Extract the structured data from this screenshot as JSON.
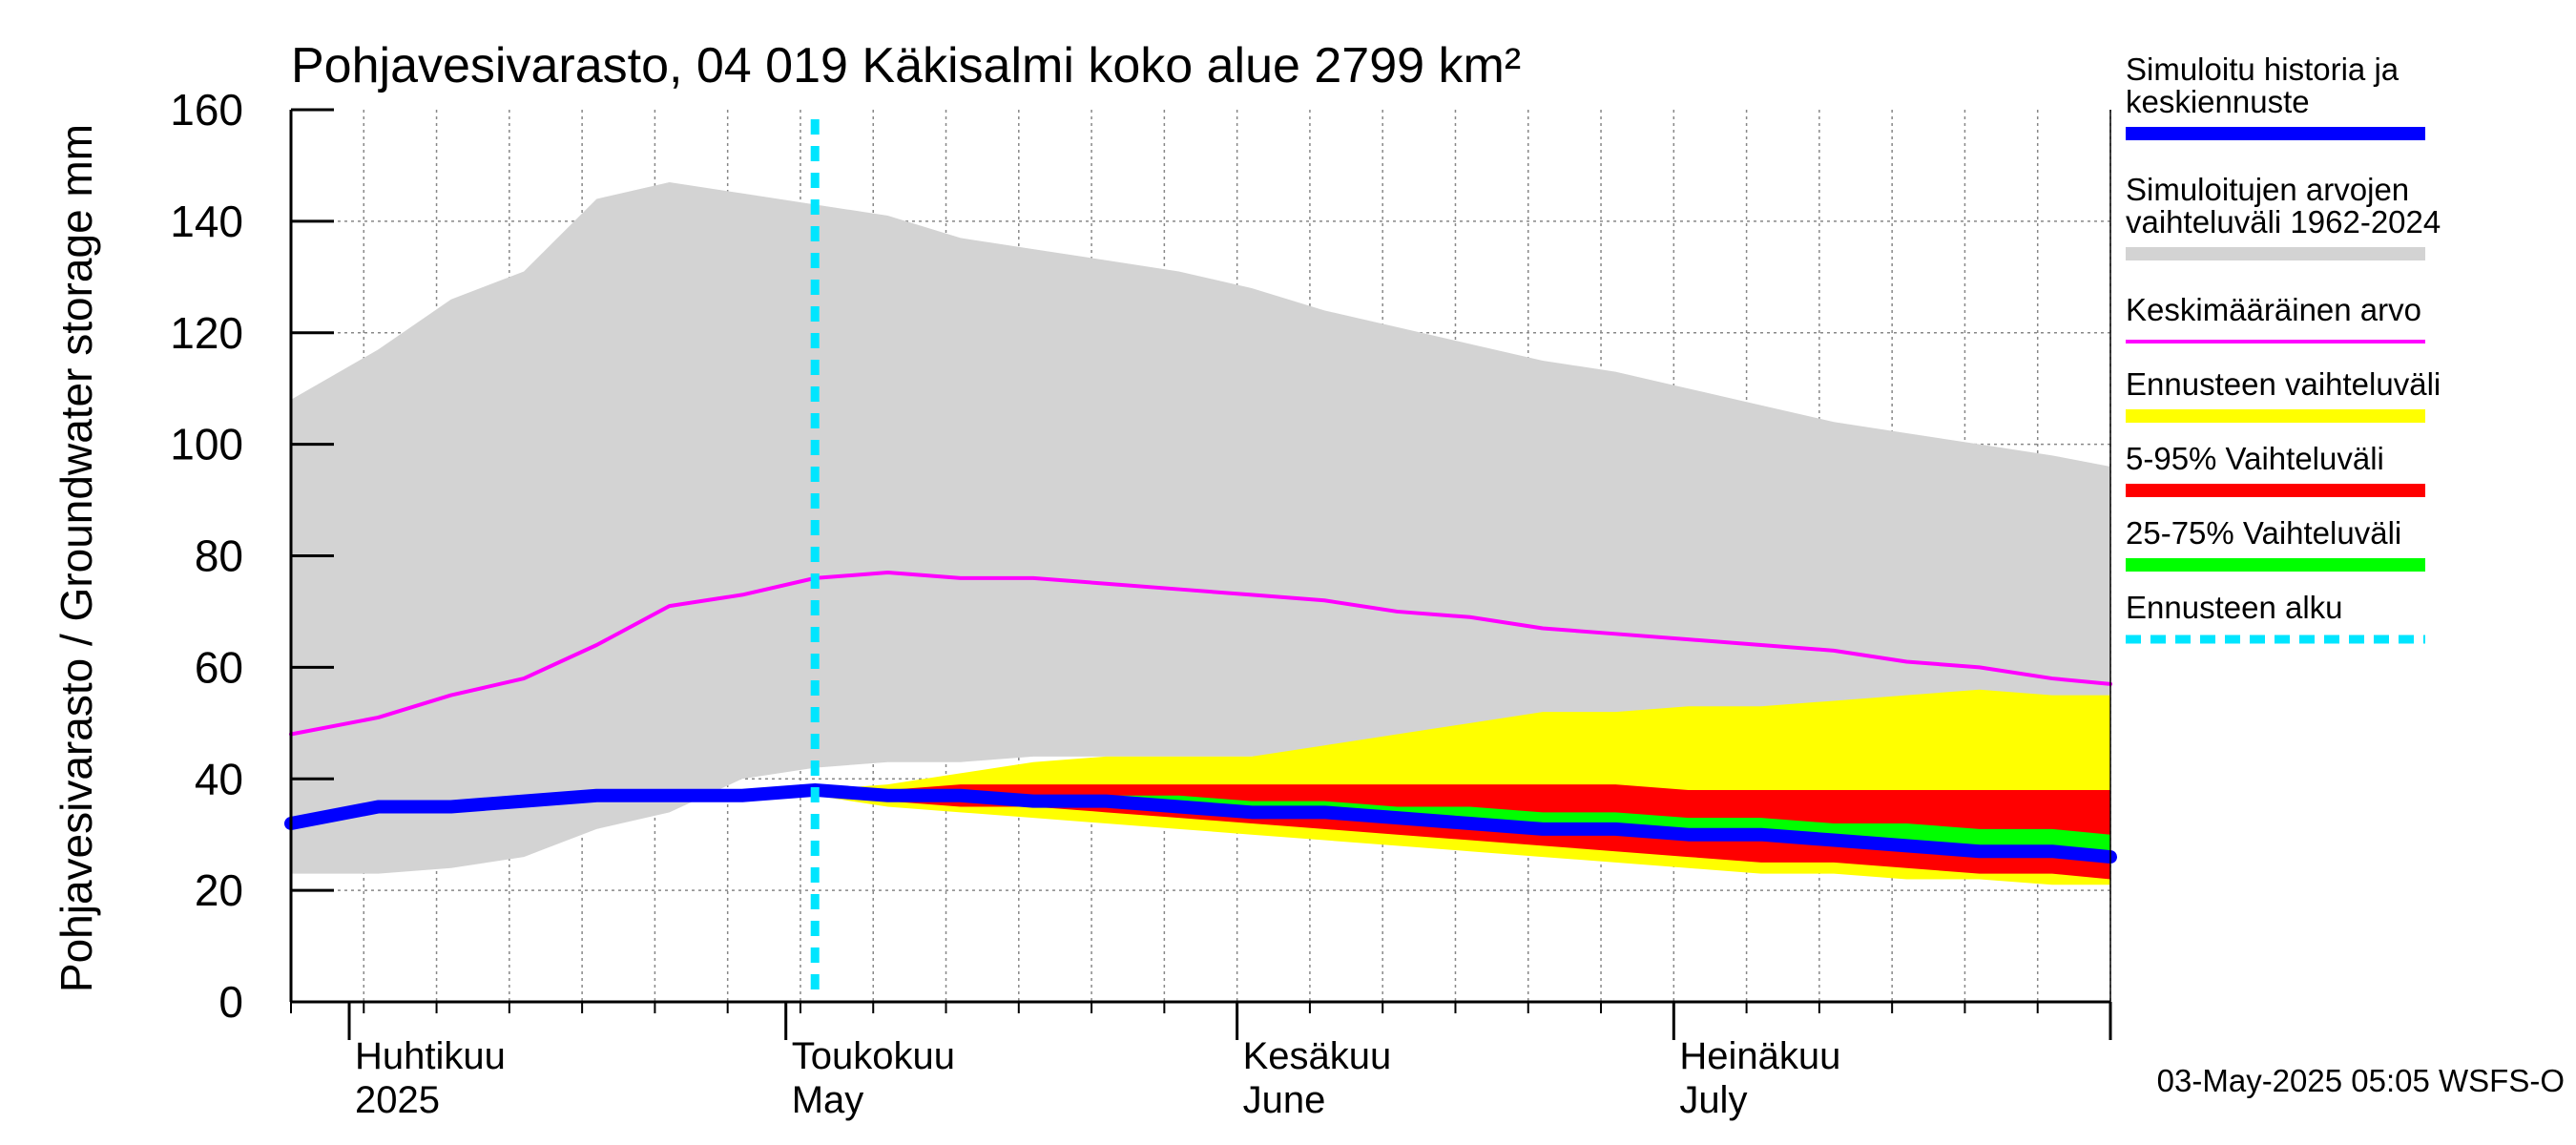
{
  "chart_data": {
    "type": "area",
    "title": "Pohjavesivarasto, 04 019 Käkisalmi koko alue 2799 km²",
    "ylabel": "Pohjavesivarasto / Groundwater storage   mm",
    "ylim": [
      0,
      160
    ],
    "y_ticks": [
      "0",
      "20",
      "40",
      "60",
      "80",
      "100",
      "120",
      "140",
      "160"
    ],
    "xlim": [
      "2025-03-28",
      "2025-07-31"
    ],
    "grid": true,
    "months": [
      {
        "date": "2025-04-01",
        "line1": "Huhtikuu",
        "line2": "2025"
      },
      {
        "date": "2025-05-01",
        "line1": "Toukokuu",
        "line2": "May"
      },
      {
        "date": "2025-06-01",
        "line1": "Kesäkuu",
        "line2": "June"
      },
      {
        "date": "2025-07-01",
        "line1": "Heinäkuu",
        "line2": "July"
      }
    ],
    "forecast_start": "2025-05-03",
    "x": [
      "2025-03-28",
      "2025-04-03",
      "2025-04-08",
      "2025-04-13",
      "2025-04-18",
      "2025-04-23",
      "2025-04-28",
      "2025-05-03",
      "2025-05-08",
      "2025-05-13",
      "2025-05-18",
      "2025-05-23",
      "2025-05-28",
      "2025-06-02",
      "2025-06-07",
      "2025-06-12",
      "2025-06-17",
      "2025-06-22",
      "2025-06-27",
      "2025-07-02",
      "2025-07-07",
      "2025-07-12",
      "2025-07-17",
      "2025-07-22",
      "2025-07-27",
      "2025-07-31"
    ],
    "series": [
      {
        "name": "Simuloitujen arvojen vaihteluväli 1962-2024",
        "kind": "band",
        "color": "#d3d3d3",
        "upper": [
          108,
          117,
          126,
          131,
          144,
          147,
          145,
          143,
          141,
          137,
          135,
          133,
          131,
          128,
          124,
          121,
          118,
          115,
          113,
          110,
          107,
          104,
          102,
          100,
          98,
          96
        ],
        "lower": [
          23,
          23,
          24,
          26,
          31,
          34,
          40,
          42,
          43,
          43,
          44,
          44,
          44,
          44,
          44,
          43,
          43,
          42,
          42,
          41,
          41,
          40,
          40,
          39,
          39,
          38
        ]
      },
      {
        "name": "Ennusteen vaihteluväli",
        "kind": "band",
        "color": "#ffff00",
        "upper": [
          null,
          null,
          null,
          null,
          null,
          null,
          null,
          38,
          39,
          41,
          43,
          44,
          44,
          44,
          46,
          48,
          50,
          52,
          52,
          53,
          53,
          54,
          55,
          56,
          55,
          55
        ],
        "lower": [
          null,
          null,
          null,
          null,
          null,
          null,
          null,
          37,
          35,
          34,
          33,
          32,
          31,
          30,
          29,
          28,
          27,
          26,
          25,
          24,
          23,
          23,
          22,
          22,
          21,
          21
        ]
      },
      {
        "name": "5-95% Vaihteluväli",
        "kind": "band",
        "color": "#ff0000",
        "upper": [
          null,
          null,
          null,
          null,
          null,
          null,
          null,
          38,
          38,
          39,
          39,
          39,
          39,
          39,
          39,
          39,
          39,
          39,
          39,
          38,
          38,
          38,
          38,
          38,
          38,
          38
        ],
        "lower": [
          null,
          null,
          null,
          null,
          null,
          null,
          null,
          37,
          36,
          35,
          35,
          34,
          33,
          32,
          31,
          30,
          29,
          28,
          27,
          26,
          25,
          25,
          24,
          23,
          23,
          22
        ]
      },
      {
        "name": "25-75% Vaihteluväli",
        "kind": "band",
        "color": "#00ff00",
        "upper": [
          null,
          null,
          null,
          null,
          null,
          null,
          null,
          38,
          38,
          38,
          37,
          37,
          37,
          36,
          36,
          35,
          35,
          34,
          34,
          33,
          33,
          32,
          32,
          31,
          31,
          30
        ],
        "lower": [
          null,
          null,
          null,
          null,
          null,
          null,
          null,
          37,
          37,
          36,
          36,
          35,
          34,
          33,
          33,
          32,
          31,
          31,
          30,
          29,
          29,
          28,
          27,
          27,
          26,
          25
        ]
      },
      {
        "name": "Keskimääräinen arvo",
        "kind": "line",
        "color": "#ff00ff",
        "values": [
          48,
          51,
          55,
          58,
          64,
          71,
          73,
          76,
          77,
          76,
          76,
          75,
          74,
          73,
          72,
          70,
          69,
          67,
          66,
          65,
          64,
          63,
          61,
          60,
          58,
          57
        ]
      },
      {
        "name": "Simuloitu historia ja keskiennuste",
        "kind": "line",
        "color": "#0000ff",
        "values": [
          32,
          35,
          35,
          36,
          37,
          37,
          37,
          38,
          37,
          37,
          36,
          36,
          35,
          34,
          34,
          33,
          32,
          31,
          31,
          30,
          30,
          29,
          28,
          27,
          27,
          26
        ]
      }
    ],
    "legend_position": "right",
    "legend": [
      {
        "label1": "Simuloitu historia ja",
        "label2": "keskiennuste",
        "color": "#0000ff",
        "style": "line"
      },
      {
        "label1": "Simuloitujen arvojen",
        "label2": "vaihteluväli 1962-2024",
        "color": "#d3d3d3",
        "style": "line"
      },
      {
        "label1": "Keskimääräinen arvo",
        "label2": "",
        "color": "#ff00ff",
        "style": "thin"
      },
      {
        "label1": "Ennusteen vaihteluväli",
        "label2": "",
        "color": "#ffff00",
        "style": "line"
      },
      {
        "label1": "5-95% Vaihteluväli",
        "label2": "",
        "color": "#ff0000",
        "style": "line"
      },
      {
        "label1": "25-75% Vaihteluväli",
        "label2": "",
        "color": "#00ff00",
        "style": "line"
      },
      {
        "label1": "Ennusteen alku",
        "label2": "",
        "color": "#00e5ff",
        "style": "dashed"
      }
    ]
  },
  "footer": "03-May-2025 05:05 WSFS-O"
}
